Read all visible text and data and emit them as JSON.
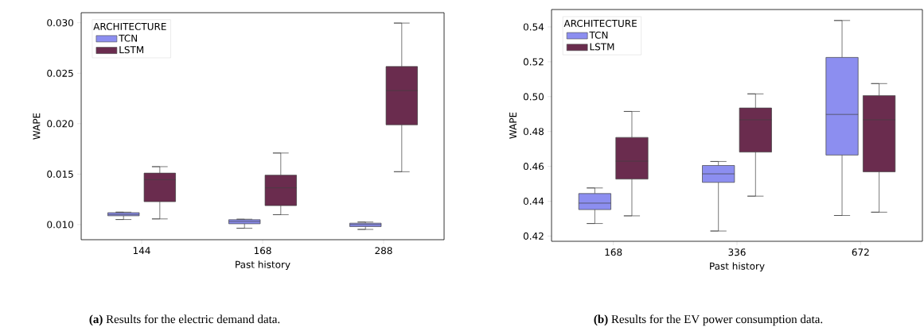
{
  "chart_data": [
    {
      "type": "box",
      "categories": [
        "144",
        "168",
        "288"
      ],
      "xlabel": "Past history",
      "ylabel": "WAPE",
      "legend_title": "ARCHITECTURE",
      "legend": "top left",
      "ylim": [
        0.0085,
        0.031
      ],
      "yticks": [
        {
          "value": 0.01,
          "label": "0.010"
        },
        0.015,
        {
          "value": 0.02,
          "label": "0.020"
        },
        0.025,
        {
          "value": 0.03,
          "label": "0.030"
        }
      ],
      "series": [
        {
          "name": "TCN",
          "color": "#8c8ef0",
          "boxes": [
            {
              "low": 0.0105,
              "q1": 0.01087,
              "median": 0.011,
              "q3": 0.01118,
              "high": 0.01123
            },
            {
              "low": 0.00964,
              "q1": 0.01008,
              "median": 0.0103,
              "q3": 0.01048,
              "high": 0.01053
            },
            {
              "low": 0.00952,
              "q1": 0.0098,
              "median": 0.01,
              "q3": 0.01014,
              "high": 0.01025
            }
          ]
        },
        {
          "name": "LSTM",
          "color": "#6a2c4e",
          "boxes": [
            {
              "low": 0.01056,
              "q1": 0.01227,
              "median": 0.01445,
              "q3": 0.0151,
              "high": 0.01574
            },
            {
              "low": 0.01098,
              "q1": 0.01188,
              "median": 0.01364,
              "q3": 0.0149,
              "high": 0.01709
            },
            {
              "low": 0.01524,
              "q1": 0.01989,
              "median": 0.02328,
              "q3": 0.02566,
              "high": 0.02997
            }
          ]
        }
      ],
      "annotations": [
        "**(a)** Results for the electric demand data."
      ]
    },
    {
      "type": "box",
      "categories": [
        "168",
        "336",
        "672"
      ],
      "xlabel": "Past history",
      "ylabel": "WAPE",
      "legend_title": "ARCHITECTURE",
      "legend": "top left",
      "ylim": [
        0.417,
        0.55
      ],
      "yticks": [
        0.42,
        0.44,
        0.46,
        0.48,
        {
          "value": 0.5,
          "label": "0.50"
        },
        0.52,
        0.54
      ],
      "series": [
        {
          "name": "TCN",
          "color": "#8c8ef0",
          "boxes": [
            {
              "low": 0.4272,
              "q1": 0.4352,
              "median": 0.4389,
              "q3": 0.4444,
              "high": 0.4476
            },
            {
              "low": 0.4229,
              "q1": 0.4508,
              "median": 0.4557,
              "q3": 0.4605,
              "high": 0.4628
            },
            {
              "low": 0.4318,
              "q1": 0.4665,
              "median": 0.4898,
              "q3": 0.5225,
              "high": 0.5437
            }
          ]
        },
        {
          "name": "LSTM",
          "color": "#6a2c4e",
          "boxes": [
            {
              "low": 0.4316,
              "q1": 0.4527,
              "median": 0.463,
              "q3": 0.4766,
              "high": 0.4915
            },
            {
              "low": 0.4429,
              "q1": 0.4682,
              "median": 0.4867,
              "q3": 0.4935,
              "high": 0.5016
            },
            {
              "low": 0.4337,
              "q1": 0.4569,
              "median": 0.4867,
              "q3": 0.5006,
              "high": 0.5075
            }
          ]
        }
      ],
      "annotations": [
        "**(b)** Results for the EV power consumption data."
      ]
    }
  ]
}
